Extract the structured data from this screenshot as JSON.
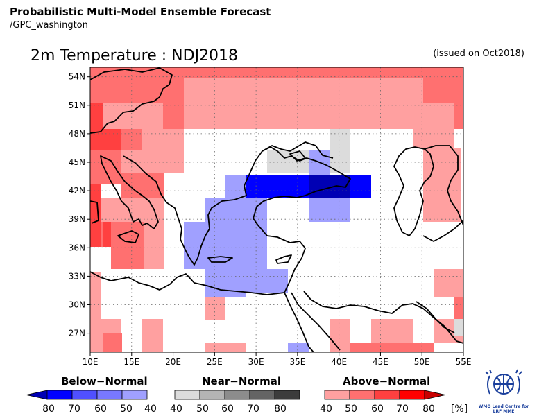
{
  "header": {
    "title": "Probabilistic Multi-Model Ensemble Forecast",
    "subtitle": "/GPC_washington"
  },
  "map": {
    "title": "2m Temperature : NDJ2018",
    "issued": "(issued on Oct2018)",
    "lon_range": [
      10,
      55
    ],
    "lat_range": [
      25,
      55
    ],
    "grid": true,
    "x_ticks": [
      "10E",
      "15E",
      "20E",
      "25E",
      "30E",
      "35E",
      "40E",
      "45E",
      "50E",
      "55E"
    ],
    "y_ticks": [
      "54N",
      "51N",
      "48N",
      "45N",
      "42N",
      "39N",
      "36N",
      "33N",
      "30N",
      "27N"
    ],
    "x_tick_values": [
      10,
      15,
      20,
      25,
      30,
      35,
      40,
      45,
      50,
      55
    ],
    "y_tick_values": [
      54,
      51,
      48,
      45,
      42,
      39,
      36,
      33,
      30,
      27
    ]
  },
  "legend": {
    "below": {
      "title": "Below−Normal",
      "labels": [
        "80",
        "70",
        "60",
        "50",
        "40"
      ],
      "colors": [
        "#0000b4",
        "#0000ff",
        "#5050ff",
        "#7878ff",
        "#a0a0ff"
      ]
    },
    "near": {
      "title": "Near−Normal",
      "labels": [
        "40",
        "50",
        "60",
        "70",
        "80"
      ],
      "colors": [
        "#dcdcdc",
        "#b4b4b4",
        "#8c8c8c",
        "#646464",
        "#3c3c3c"
      ]
    },
    "above": {
      "title": "Above−Normal",
      "labels": [
        "40",
        "50",
        "60",
        "70",
        "80",
        "[%]"
      ],
      "colors": [
        "#ffa0a0",
        "#ff7070",
        "#ff4040",
        "#ff0000",
        "#c80000"
      ]
    }
  },
  "logo": {
    "text_line1": "WMO Lead Centre for",
    "text_line2": "LRF MME"
  }
}
